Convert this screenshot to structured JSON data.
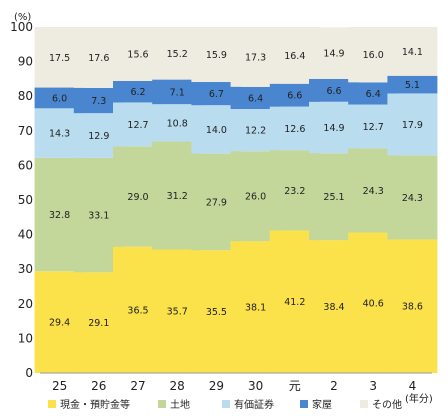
{
  "chart_data": {
    "type": "bar",
    "stacked": true,
    "title": "",
    "xlabel": "",
    "ylabel": "",
    "y_unit": "(%)",
    "x_unit": "(年分)",
    "ylim": [
      0,
      100
    ],
    "yticks": [
      0,
      10,
      20,
      30,
      40,
      50,
      60,
      70,
      80,
      90,
      100
    ],
    "grid": false,
    "legend_position": "bottom",
    "categories": [
      "25",
      "26",
      "27",
      "28",
      "29",
      "30",
      "元",
      "2",
      "3",
      "4"
    ],
    "series": [
      {
        "name": "現金・預貯金等",
        "color": "#fbe14a",
        "values": [
          29.4,
          29.1,
          36.5,
          35.7,
          35.5,
          38.1,
          41.2,
          38.4,
          40.6,
          38.6
        ]
      },
      {
        "name": "土地",
        "color": "#c4d79a",
        "values": [
          32.8,
          33.1,
          29.0,
          31.2,
          27.9,
          26.0,
          23.2,
          25.1,
          24.3,
          24.3
        ]
      },
      {
        "name": "有価証券",
        "color": "#b9dcef",
        "values": [
          14.3,
          12.9,
          12.7,
          10.8,
          14.0,
          12.2,
          12.6,
          14.9,
          12.7,
          17.9
        ]
      },
      {
        "name": "家屋",
        "color": "#4a86cf",
        "values": [
          6.0,
          7.3,
          6.2,
          7.1,
          6.7,
          6.4,
          6.6,
          6.6,
          6.4,
          5.1
        ]
      },
      {
        "name": "その他",
        "color": "#eeebe0",
        "values": [
          17.5,
          17.6,
          15.6,
          15.2,
          15.9,
          17.3,
          16.4,
          14.9,
          16.0,
          14.1
        ]
      }
    ]
  }
}
